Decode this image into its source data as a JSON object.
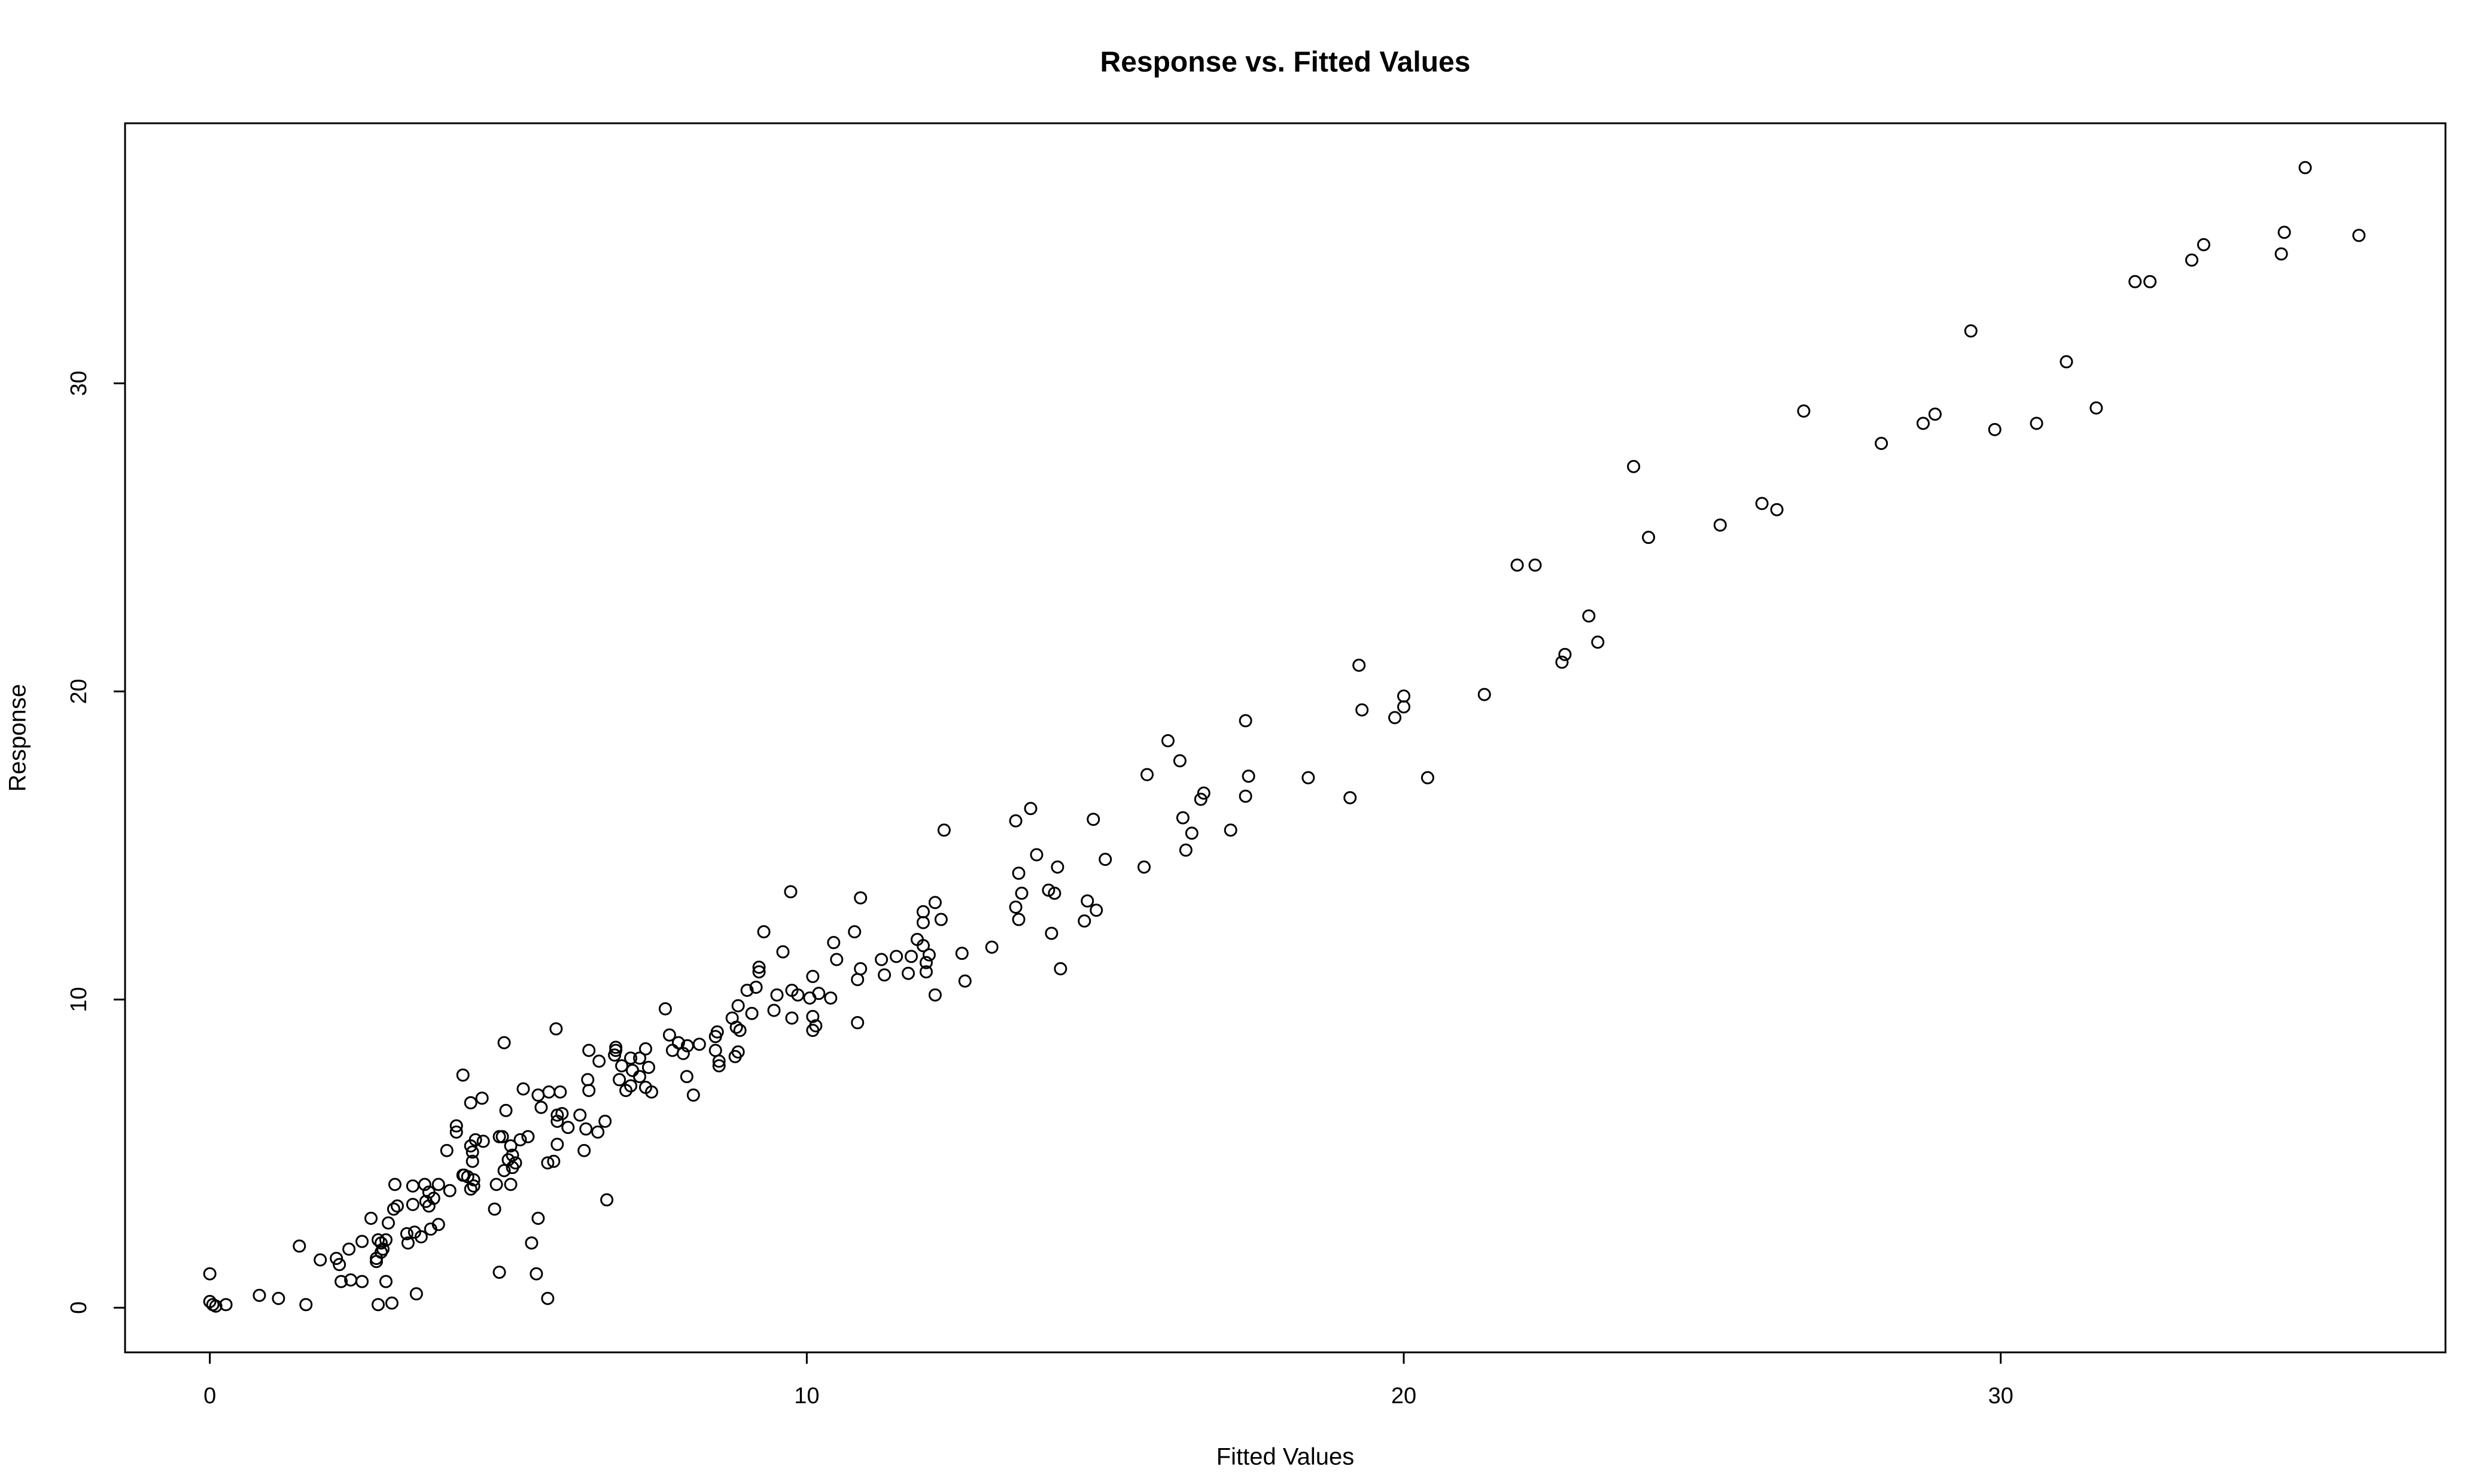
{
  "chart_data": {
    "type": "scatter",
    "title": "Response vs. Fitted Values",
    "x_label": "Fitted Values",
    "y_label": "Response",
    "color": "#000000",
    "x": [
      35.1,
      34.75,
      36.0,
      34.7,
      33.4,
      33.2,
      32.25,
      32.5,
      29.5,
      31.1,
      31.6,
      26.7,
      28.9,
      28.7,
      30.6,
      29.9,
      28.0,
      23.85,
      26.0,
      26.25,
      25.3,
      24.1,
      21.9,
      22.2,
      23.1,
      23.25,
      22.7,
      22.65,
      19.25,
      21.35,
      20.0,
      19.3,
      20.0,
      19.85,
      17.35,
      16.05,
      16.25,
      15.7,
      20.4,
      18.4,
      17.4,
      16.65,
      16.6,
      17.35,
      19.1,
      13.75,
      13.5,
      14.8,
      16.3,
      12.3,
      16.45,
      17.1,
      16.35,
      13.85,
      15.0,
      15.65,
      14.2,
      13.55,
      14.05,
      14.15,
      13.6,
      9.73,
      10.9,
      14.7,
      12.15,
      13.5,
      14.85,
      11.95,
      13.55,
      12.25,
      14.65,
      11.95,
      9.28,
      10.8,
      14.1,
      11.85,
      11.95,
      10.45,
      13.1,
      9.6,
      12.05,
      12.6,
      11.5,
      11.75,
      11.25,
      10.5,
      12.0,
      9.2,
      10.9,
      14.25,
      9.2,
      12.0,
      11.3,
      11.7,
      10.1,
      10.85,
      12.65,
      9.15,
      9.0,
      10.2,
      9.75,
      9.5,
      10.05,
      9.85,
      10.4,
      12.15,
      8.85,
      7.63,
      9.45,
      9.08,
      8.75,
      9.75,
      10.1,
      10.85,
      10.15,
      8.82,
      10.1,
      5.8,
      8.5,
      8.88,
      7.7,
      8.47,
      4.93,
      7.85,
      8.2,
      8.0,
      7.3,
      6.8,
      6.35,
      6.8,
      7.75,
      8.47,
      6.78,
      7.93,
      8.85,
      8.8,
      8.53,
      8.53,
      6.52,
      7.05,
      7.2,
      7.35,
      6.9,
      7.08,
      4.24,
      7.99,
      6.86,
      6.33,
      7.2,
      7.05,
      7.3,
      5.25,
      7.4,
      5.87,
      6.35,
      6.97,
      8.1,
      5.68,
      4.56,
      5.5,
      4.37,
      5.55,
      4.96,
      5.9,
      6.2,
      5.82,
      5.82,
      6.62,
      6.0,
      4.13,
      4.13,
      6.3,
      6.5,
      5.33,
      4.9,
      4.85,
      4.45,
      4.58,
      5.2,
      4.37,
      5.04,
      5.82,
      6.27,
      3.97,
      4.4,
      5.07,
      5.0,
      4.4,
      5.12,
      5.07,
      5.66,
      5.76,
      4.93,
      4.26,
      4.24,
      4.32,
      4.42,
      5.04,
      4.8,
      3.1,
      3.4,
      3.6,
      3.83,
      4.42,
      4.02,
      4.37,
      3.67,
      3.75,
      3.62,
      6.65,
      3.4,
      3.67,
      3.14,
      3.08,
      4.77,
      2.7,
      5.5,
      2.99,
      3.83,
      3.7,
      3.43,
      3.3,
      3.54,
      2.95,
      2.82,
      2.87,
      2.55,
      3.32,
      1.5,
      2.33,
      5.39,
      2.9,
      2.87,
      2.12,
      2.79,
      1.85,
      2.79,
      2.17,
      4.85,
      5.47,
      0.0,
      2.2,
      2.36,
      2.55,
      2.95,
      3.46,
      0.83,
      1.15,
      5.66,
      0.0,
      0.05,
      1.61,
      0.27,
      2.82,
      3.05,
      0.1
    ],
    "values": [
      37.0,
      34.9,
      34.8,
      34.2,
      34.5,
      34.0,
      33.3,
      33.3,
      31.7,
      30.7,
      29.2,
      29.1,
      29.0,
      28.7,
      28.7,
      28.5,
      28.05,
      27.3,
      26.1,
      25.9,
      25.4,
      25.0,
      24.1,
      24.1,
      22.45,
      21.6,
      21.2,
      20.95,
      20.85,
      19.9,
      19.85,
      19.4,
      19.5,
      19.15,
      19.05,
      18.4,
      17.75,
      17.3,
      17.2,
      17.2,
      17.25,
      16.7,
      16.5,
      16.6,
      16.55,
      16.2,
      15.8,
      15.85,
      15.9,
      15.5,
      15.4,
      15.5,
      14.85,
      14.7,
      14.55,
      14.3,
      14.3,
      14.1,
      13.55,
      13.45,
      13.45,
      13.5,
      13.3,
      13.2,
      13.15,
      13.0,
      12.9,
      12.85,
      12.6,
      12.6,
      12.55,
      12.5,
      12.2,
      12.2,
      12.15,
      11.95,
      11.75,
      11.85,
      11.7,
      11.55,
      11.45,
      11.5,
      11.4,
      11.4,
      11.3,
      11.3,
      11.2,
      11.05,
      11.0,
      11.0,
      10.9,
      10.9,
      10.8,
      10.85,
      10.75,
      10.65,
      10.6,
      10.4,
      10.3,
      10.2,
      10.3,
      10.15,
      10.05,
      10.15,
      10.05,
      10.15,
      9.8,
      9.7,
      9.65,
      9.55,
      9.4,
      9.4,
      9.45,
      9.25,
      9.15,
      9.1,
      9.0,
      9.05,
      8.95,
      9.0,
      8.85,
      8.8,
      8.6,
      8.6,
      8.55,
      8.5,
      8.4,
      8.45,
      8.35,
      8.35,
      8.35,
      8.35,
      8.2,
      8.25,
      8.3,
      8.15,
      8.0,
      7.85,
      8.0,
      8.1,
      8.1,
      7.8,
      7.85,
      7.7,
      7.55,
      7.5,
      7.4,
      7.4,
      7.5,
      7.2,
      7.15,
      7.1,
      7.0,
      7.0,
      7.05,
      7.05,
      6.9,
      7.0,
      6.8,
      6.9,
      6.65,
      6.5,
      6.4,
      6.3,
      6.25,
      6.25,
      6.05,
      6.05,
      5.85,
      5.9,
      5.7,
      5.8,
      5.7,
      5.55,
      5.55,
      5.55,
      5.45,
      5.4,
      5.45,
      5.25,
      5.25,
      5.3,
      5.1,
      5.1,
      5.05,
      4.95,
      4.8,
      4.75,
      4.7,
      4.55,
      4.7,
      4.75,
      4.45,
      4.3,
      4.3,
      4.25,
      4.15,
      4.0,
      4.0,
      4.0,
      3.95,
      4.0,
      4.0,
      3.95,
      3.8,
      3.85,
      3.75,
      3.55,
      3.45,
      3.5,
      3.35,
      3.3,
      3.3,
      3.2,
      3.2,
      2.9,
      2.9,
      2.75,
      2.7,
      2.55,
      2.45,
      2.4,
      2.3,
      2.2,
      2.2,
      2.1,
      2.15,
      2.1,
      2.0,
      1.9,
      2.1,
      1.9,
      1.8,
      1.6,
      1.6,
      1.55,
      1.5,
      1.4,
      1.15,
      1.1,
      1.1,
      0.85,
      0.9,
      0.85,
      0.85,
      0.45,
      0.4,
      0.3,
      0.3,
      0.2,
      0.1,
      0.1,
      0.1,
      0.1,
      0.15,
      0.05
    ],
    "xlim": [
      -1.42,
      37.45
    ],
    "ylim": [
      -1.45,
      38.44
    ],
    "xticks": [
      0,
      10,
      20,
      30
    ],
    "yticks": [
      0,
      10,
      20,
      30
    ]
  }
}
